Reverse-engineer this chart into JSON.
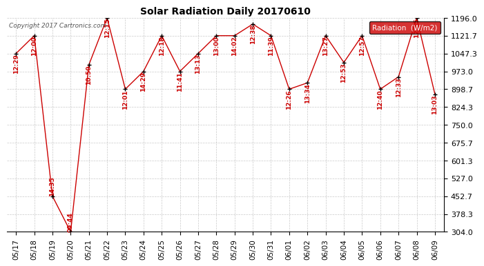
{
  "title": "Solar Radiation Daily 20170610",
  "copyright": "Copyright 2017 Cartronics.com",
  "legend_label": "Radiation  (W/m2)",
  "xlabels": [
    "05/17",
    "05/18",
    "05/19",
    "05/20",
    "05/21",
    "05/22",
    "05/23",
    "05/24",
    "05/25",
    "05/26",
    "05/27",
    "05/28",
    "05/29",
    "05/30",
    "05/31",
    "06/01",
    "06/02",
    "06/03",
    "06/04",
    "06/05",
    "06/06",
    "06/07",
    "06/08",
    "06/09"
  ],
  "yvalues": [
    1047.3,
    1121.7,
    452.7,
    304.0,
    1000.0,
    1196.0,
    898.7,
    973.0,
    1121.7,
    973.0,
    1047.3,
    1121.7,
    1121.7,
    1170.0,
    1121.7,
    898.7,
    925.0,
    1121.7,
    1010.0,
    1121.7,
    898.7,
    950.0,
    1196.0,
    878.0
  ],
  "time_labels": [
    "12:29",
    "12:00",
    "14:35",
    "09:44",
    "10:50",
    "12:15",
    "12:01",
    "14:29",
    "12:18",
    "11:41",
    "13:13",
    "13:00",
    "14:02",
    "12:38",
    "11:39",
    "12:26",
    "13:34",
    "13:27",
    "12:53",
    "12:57",
    "12:40",
    "12:33",
    "12:55",
    "13:03"
  ],
  "ylim": [
    304.0,
    1196.0
  ],
  "yticks": [
    304.0,
    378.3,
    452.7,
    527.0,
    601.3,
    675.7,
    750.0,
    824.3,
    898.7,
    973.0,
    1047.3,
    1121.7,
    1196.0
  ],
  "line_color": "#cc0000",
  "marker_color": "black",
  "annotation_color": "#cc0000",
  "background_color": "white",
  "grid_color": "#bbbbbb",
  "legend_bg": "#cc0000",
  "legend_text_color": "white",
  "figwidth": 6.9,
  "figheight": 3.75,
  "dpi": 100
}
